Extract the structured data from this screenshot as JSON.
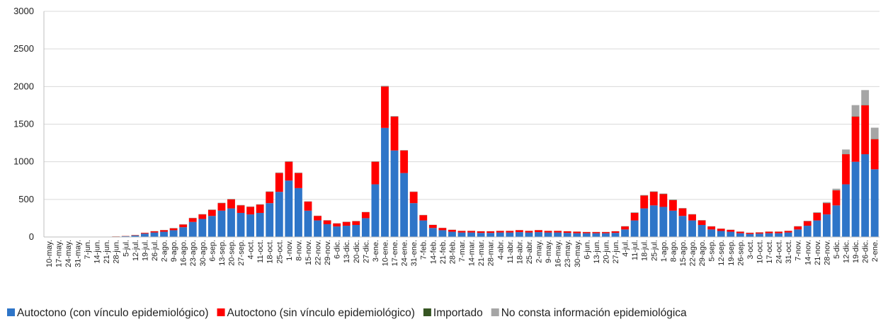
{
  "chart_data": {
    "type": "stacked-bar",
    "categories": [
      "10-may.",
      "17-may.",
      "24-may.",
      "31-may.",
      "7-jun.",
      "14-jun.",
      "21-jun.",
      "28-jun.",
      "5-jul.",
      "12-jul.",
      "19-jul.",
      "26-jul.",
      "2-ago.",
      "9-ago.",
      "16-ago.",
      "23-ago.",
      "30-ago.",
      "6-sep.",
      "13-sep.",
      "20-sep.",
      "27-sep.",
      "4-oct.",
      "11-oct.",
      "18-oct.",
      "25-oct.",
      "1-nov.",
      "8-nov.",
      "15-nov.",
      "22-nov.",
      "29-nov.",
      "6-dic.",
      "13-dic.",
      "20-dic.",
      "27-dic.",
      "3-ene.",
      "10-ene.",
      "17-ene.",
      "24-ene.",
      "31-ene.",
      "7-feb.",
      "14-feb.",
      "21-feb.",
      "28-feb.",
      "7-mar.",
      "14-mar.",
      "21-mar.",
      "28-mar.",
      "4-abr.",
      "11-abr.",
      "18-abr.",
      "25-abr.",
      "2-may.",
      "9-may.",
      "16-may.",
      "23-may.",
      "30-may.",
      "6-jun.",
      "13-jun.",
      "20-jun.",
      "27-jun.",
      "4-jul.",
      "11-jul.",
      "18-jul.",
      "25-jul.",
      "1-ago.",
      "8-ago.",
      "15-ago.",
      "22-ago.",
      "29-ago.",
      "5-sep.",
      "12-sep.",
      "19-sep.",
      "26-sep.",
      "3-oct.",
      "10-oct.",
      "17-oct.",
      "24-oct.",
      "31-oct.",
      "7-nov.",
      "14-nov.",
      "21-nov.",
      "28-nov.",
      "5-dic.",
      "12-dic.",
      "19-dic.",
      "26-dic.",
      "2-ene."
    ],
    "series": [
      {
        "name": "Autoctono (con vínculo epidemiológico)",
        "color": "#2e75c8",
        "values": [
          2,
          2,
          2,
          2,
          2,
          2,
          3,
          5,
          10,
          20,
          45,
          60,
          70,
          90,
          130,
          200,
          240,
          280,
          350,
          380,
          320,
          300,
          320,
          450,
          600,
          750,
          650,
          350,
          220,
          170,
          140,
          150,
          160,
          250,
          700,
          1450,
          1150,
          850,
          450,
          220,
          120,
          90,
          70,
          60,
          60,
          55,
          55,
          60,
          60,
          65,
          60,
          65,
          60,
          60,
          55,
          50,
          50,
          50,
          50,
          55,
          100,
          220,
          380,
          420,
          400,
          350,
          280,
          220,
          160,
          100,
          80,
          70,
          50,
          40,
          45,
          50,
          50,
          60,
          100,
          150,
          220,
          300,
          420,
          700,
          1000,
          1100,
          900
        ]
      },
      {
        "name": "Autoctono (sin vínculo epidemiológico)",
        "color": "#ff0000",
        "values": [
          0,
          0,
          0,
          0,
          0,
          0,
          1,
          2,
          3,
          5,
          10,
          15,
          20,
          25,
          35,
          50,
          60,
          80,
          100,
          120,
          100,
          100,
          110,
          150,
          250,
          250,
          200,
          120,
          60,
          50,
          40,
          50,
          50,
          80,
          300,
          550,
          450,
          300,
          150,
          70,
          40,
          30,
          25,
          20,
          20,
          20,
          20,
          20,
          20,
          25,
          20,
          25,
          20,
          20,
          20,
          20,
          15,
          15,
          15,
          20,
          40,
          100,
          170,
          180,
          170,
          140,
          100,
          80,
          60,
          40,
          30,
          25,
          20,
          15,
          15,
          20,
          20,
          20,
          40,
          60,
          100,
          150,
          200,
          400,
          600,
          650,
          400
        ]
      },
      {
        "name": "Importado",
        "color": "#375623",
        "values": [
          0,
          0,
          0,
          0,
          0,
          0,
          0,
          1,
          1,
          1,
          1,
          2,
          2,
          2,
          2,
          2,
          2,
          2,
          2,
          2,
          2,
          2,
          2,
          2,
          2,
          2,
          2,
          1,
          1,
          1,
          1,
          1,
          1,
          1,
          2,
          2,
          2,
          1,
          1,
          1,
          1,
          1,
          1,
          1,
          1,
          1,
          1,
          1,
          1,
          1,
          1,
          1,
          1,
          1,
          1,
          1,
          1,
          1,
          1,
          1,
          2,
          3,
          3,
          3,
          3,
          3,
          2,
          2,
          2,
          1,
          1,
          1,
          1,
          1,
          1,
          1,
          1,
          1,
          1,
          1,
          2,
          2,
          2,
          3,
          3,
          3,
          3
        ]
      },
      {
        "name": "No consta información epidemiológica",
        "color": "#a5a5a5",
        "values": [
          0,
          0,
          0,
          0,
          0,
          0,
          0,
          0,
          0,
          1,
          1,
          1,
          2,
          2,
          2,
          3,
          3,
          3,
          4,
          4,
          4,
          4,
          4,
          5,
          6,
          6,
          5,
          4,
          3,
          3,
          3,
          3,
          3,
          3,
          5,
          8,
          6,
          5,
          4,
          3,
          2,
          2,
          2,
          2,
          2,
          2,
          2,
          2,
          2,
          2,
          2,
          2,
          2,
          2,
          2,
          2,
          2,
          2,
          2,
          2,
          3,
          4,
          5,
          5,
          5,
          4,
          4,
          3,
          3,
          2,
          2,
          2,
          2,
          2,
          2,
          2,
          2,
          3,
          4,
          5,
          8,
          12,
          20,
          60,
          150,
          200,
          150
        ]
      }
    ],
    "ylim": [
      0,
      3000
    ],
    "yticks": [
      0,
      500,
      1000,
      1500,
      2000,
      2500,
      3000
    ],
    "grid": true,
    "legend": "bottom"
  }
}
